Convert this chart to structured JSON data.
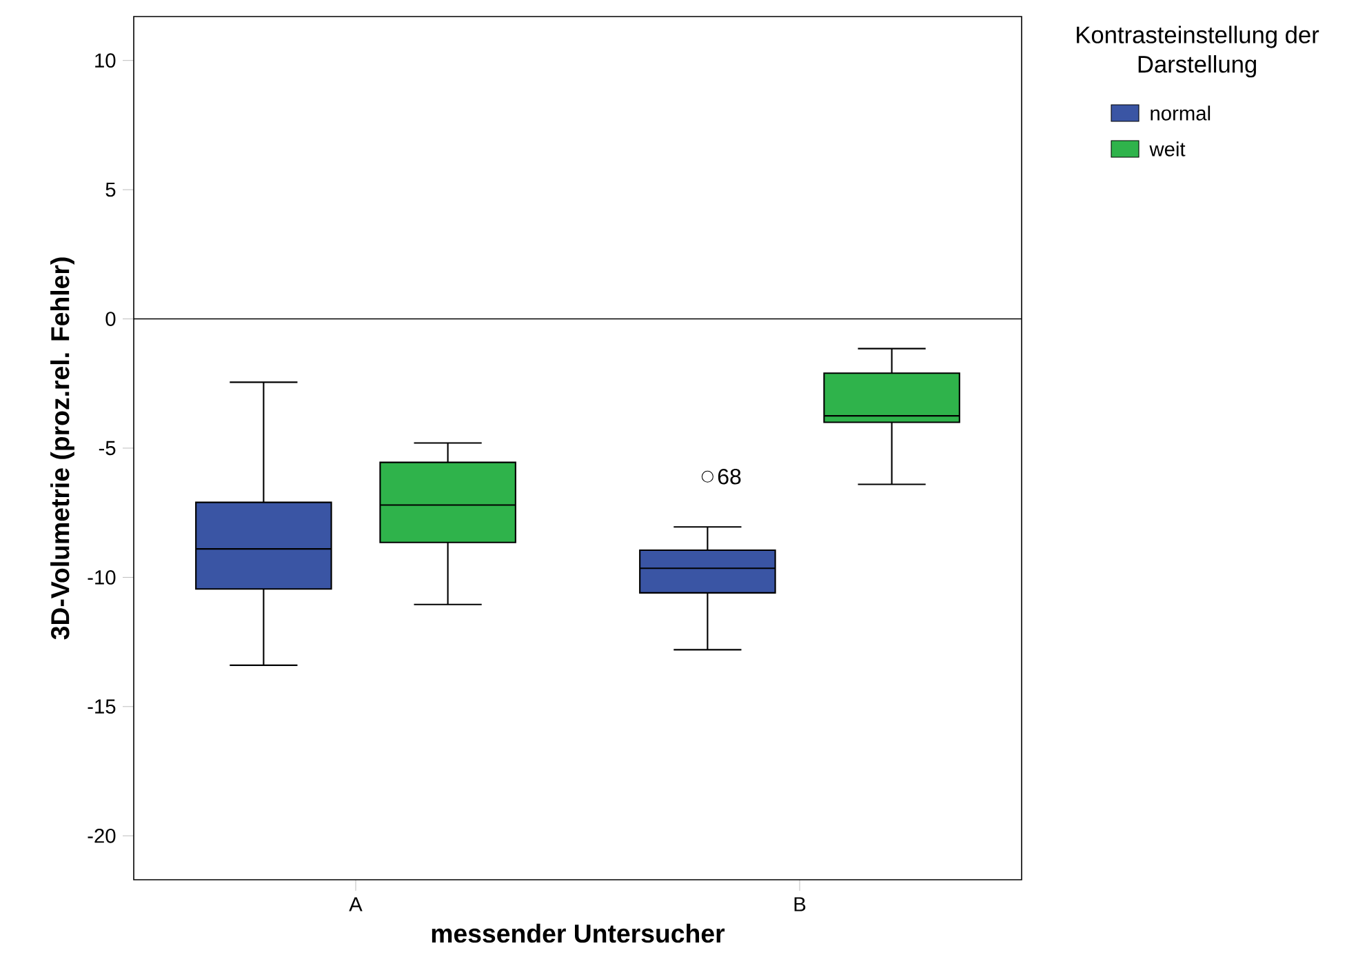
{
  "chart_data": {
    "type": "box",
    "xlabel": "messender Untersucher",
    "ylabel": "3D-Volumetrie (proz.rel. Fehler)",
    "legend_title": "Kontrasteinstellung der Darstellung",
    "legend": "top right",
    "categories": [
      "A",
      "B"
    ],
    "series": [
      {
        "name": "normal",
        "color": "#3a55a4",
        "boxes": [
          {
            "low": -13.4,
            "q1": -10.45,
            "median": -8.9,
            "q3": -7.1,
            "high": -2.45
          },
          {
            "low": -12.8,
            "q1": -10.6,
            "median": -9.65,
            "q3": -8.95,
            "high": -8.05,
            "outliers": [
              -6.1
            ]
          }
        ]
      },
      {
        "name": "weit",
        "color": "#2fb34b",
        "boxes": [
          {
            "low": -11.05,
            "q1": -8.65,
            "median": -7.2,
            "q3": -5.55,
            "high": -4.8
          },
          {
            "low": -6.4,
            "q1": -4.0,
            "median": -3.75,
            "q3": -2.1,
            "high": -1.15
          }
        ]
      }
    ],
    "ylim": [
      -21.7,
      11.7
    ],
    "yticks": [
      -20,
      -15,
      -10,
      -5,
      0,
      5,
      10
    ],
    "ref_lines": [
      {
        "axis": "y",
        "value": 0
      }
    ],
    "annotations": [
      "68"
    ]
  }
}
